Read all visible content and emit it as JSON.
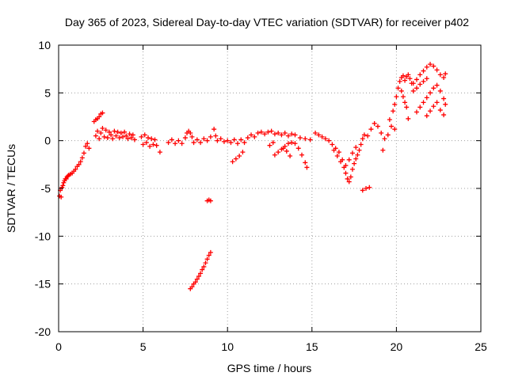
{
  "chart_data": {
    "type": "scatter",
    "title": "Day 365 of 2023, Sidereal Day-to-day VTEC variation (SDTVAR) for receiver p402",
    "xlabel": "GPS time / hours",
    "ylabel": "SDTVAR / TECUs",
    "xlim": [
      0,
      25
    ],
    "ylim": [
      -20,
      10
    ],
    "xticks": [
      "0",
      "5",
      "10",
      "15",
      "20",
      "25"
    ],
    "yticks": [
      "10",
      "5",
      "0",
      "-5",
      "-10",
      "-15",
      "-20"
    ],
    "xtick_values": [
      0,
      5,
      10,
      15,
      20,
      25
    ],
    "ytick_values": [
      10,
      5,
      0,
      -5,
      -10,
      -15,
      -20
    ],
    "grid": true,
    "marker": "+",
    "series_color": "#ff0000",
    "series": [
      {
        "name": "SDTVAR",
        "points": [
          [
            0.05,
            -5.8
          ],
          [
            0.1,
            -5.2
          ],
          [
            0.15,
            -5.9
          ],
          [
            0.2,
            -4.9
          ],
          [
            0.25,
            -4.7
          ],
          [
            0.3,
            -4.4
          ],
          [
            0.35,
            -4.2
          ],
          [
            0.4,
            -4.0
          ],
          [
            0.45,
            -4.0
          ],
          [
            0.5,
            -3.8
          ],
          [
            0.55,
            -3.7
          ],
          [
            0.6,
            -3.6
          ],
          [
            0.7,
            -3.5
          ],
          [
            0.8,
            -3.4
          ],
          [
            0.9,
            -3.2
          ],
          [
            1.0,
            -3.0
          ],
          [
            1.1,
            -2.7
          ],
          [
            1.2,
            -2.5
          ],
          [
            1.3,
            -2.2
          ],
          [
            1.4,
            -1.8
          ],
          [
            1.5,
            -1.3
          ],
          [
            1.6,
            -0.6
          ],
          [
            1.7,
            -0.3
          ],
          [
            1.8,
            -0.8
          ],
          [
            2.1,
            2.0
          ],
          [
            2.2,
            2.2
          ],
          [
            2.3,
            2.3
          ],
          [
            2.4,
            2.5
          ],
          [
            2.5,
            2.8
          ],
          [
            2.6,
            2.9
          ],
          [
            2.2,
            0.5
          ],
          [
            2.3,
            1.0
          ],
          [
            2.4,
            0.2
          ],
          [
            2.5,
            0.8
          ],
          [
            2.6,
            1.3
          ],
          [
            2.7,
            0.4
          ],
          [
            2.8,
            1.1
          ],
          [
            2.9,
            0.3
          ],
          [
            3.0,
            0.9
          ],
          [
            3.1,
            0.6
          ],
          [
            3.2,
            0.2
          ],
          [
            3.3,
            1.0
          ],
          [
            3.4,
            0.5
          ],
          [
            3.5,
            0.9
          ],
          [
            3.6,
            0.3
          ],
          [
            3.7,
            0.8
          ],
          [
            3.8,
            0.4
          ],
          [
            3.9,
            0.9
          ],
          [
            4.0,
            0.5
          ],
          [
            4.1,
            0.2
          ],
          [
            4.2,
            0.7
          ],
          [
            4.3,
            0.3
          ],
          [
            4.4,
            0.6
          ],
          [
            4.5,
            0.1
          ],
          [
            4.9,
            0.4
          ],
          [
            5.0,
            -0.4
          ],
          [
            5.1,
            0.6
          ],
          [
            5.2,
            -0.2
          ],
          [
            5.3,
            0.3
          ],
          [
            5.4,
            -0.6
          ],
          [
            5.5,
            0.2
          ],
          [
            5.6,
            -0.4
          ],
          [
            5.7,
            0.1
          ],
          [
            5.8,
            -0.5
          ],
          [
            6.0,
            -1.2
          ],
          [
            6.5,
            -0.2
          ],
          [
            6.7,
            0.1
          ],
          [
            6.9,
            -0.3
          ],
          [
            7.1,
            0.0
          ],
          [
            7.3,
            -0.3
          ],
          [
            7.5,
            0.3
          ],
          [
            7.6,
            0.8
          ],
          [
            7.7,
            1.0
          ],
          [
            7.8,
            0.8
          ],
          [
            7.9,
            0.4
          ],
          [
            8.0,
            -0.2
          ],
          [
            8.2,
            0.1
          ],
          [
            8.4,
            -0.2
          ],
          [
            8.6,
            0.2
          ],
          [
            8.8,
            0.0
          ],
          [
            9.0,
            0.4
          ],
          [
            9.2,
            1.2
          ],
          [
            9.3,
            0.5
          ],
          [
            9.4,
            0.0
          ],
          [
            9.6,
            0.2
          ],
          [
            9.8,
            -0.1
          ],
          [
            10.0,
            0.0
          ],
          [
            10.2,
            -0.2
          ],
          [
            10.4,
            0.1
          ],
          [
            10.6,
            -0.3
          ],
          [
            10.8,
            0.1
          ],
          [
            11.0,
            -0.2
          ],
          [
            10.3,
            -2.2
          ],
          [
            10.5,
            -1.9
          ],
          [
            10.7,
            -1.6
          ],
          [
            10.9,
            -1.2
          ],
          [
            11.2,
            0.3
          ],
          [
            11.4,
            0.6
          ],
          [
            11.6,
            0.4
          ],
          [
            11.8,
            0.8
          ],
          [
            12.0,
            0.9
          ],
          [
            12.2,
            0.7
          ],
          [
            12.4,
            0.9
          ],
          [
            12.6,
            1.0
          ],
          [
            12.8,
            0.7
          ],
          [
            13.0,
            0.8
          ],
          [
            13.2,
            0.6
          ],
          [
            13.4,
            0.8
          ],
          [
            13.6,
            0.5
          ],
          [
            13.8,
            0.7
          ],
          [
            14.0,
            0.6
          ],
          [
            14.3,
            0.3
          ],
          [
            14.6,
            0.2
          ],
          [
            14.9,
            0.1
          ],
          [
            12.8,
            -1.5
          ],
          [
            13.0,
            -1.2
          ],
          [
            13.2,
            -0.9
          ],
          [
            13.4,
            -0.6
          ],
          [
            13.6,
            -0.3
          ],
          [
            13.8,
            -0.2
          ],
          [
            14.0,
            -0.3
          ],
          [
            14.2,
            -0.8
          ],
          [
            14.4,
            -1.5
          ],
          [
            14.6,
            -2.3
          ],
          [
            14.7,
            -2.8
          ],
          [
            12.5,
            -0.5
          ],
          [
            12.7,
            -0.2
          ],
          [
            13.3,
            -0.8
          ],
          [
            13.5,
            -1.1
          ],
          [
            13.7,
            -1.6
          ],
          [
            15.2,
            0.8
          ],
          [
            15.4,
            0.6
          ],
          [
            15.6,
            0.4
          ],
          [
            15.8,
            0.2
          ],
          [
            16.0,
            0.0
          ],
          [
            16.2,
            -0.4
          ],
          [
            16.4,
            -0.8
          ],
          [
            16.3,
            -1.0
          ],
          [
            16.5,
            -1.6
          ],
          [
            16.7,
            -2.2
          ],
          [
            16.9,
            -2.8
          ],
          [
            17.0,
            -3.4
          ],
          [
            17.1,
            -4.0
          ],
          [
            17.2,
            -4.3
          ],
          [
            17.3,
            -3.8
          ],
          [
            17.4,
            -3.0
          ],
          [
            17.5,
            -2.4
          ],
          [
            17.6,
            -1.9
          ],
          [
            17.7,
            -1.5
          ],
          [
            17.8,
            -1.0
          ],
          [
            17.9,
            -0.4
          ],
          [
            18.0,
            0.2
          ],
          [
            18.1,
            0.6
          ],
          [
            16.6,
            -1.2
          ],
          [
            16.8,
            -2.0
          ],
          [
            17.0,
            -2.6
          ],
          [
            17.2,
            -2.0
          ],
          [
            17.4,
            -1.3
          ],
          [
            17.6,
            -0.7
          ],
          [
            18.0,
            -5.2
          ],
          [
            18.2,
            -5.0
          ],
          [
            18.4,
            -4.9
          ],
          [
            18.3,
            0.5
          ],
          [
            18.5,
            1.2
          ],
          [
            18.7,
            1.8
          ],
          [
            18.9,
            1.5
          ],
          [
            19.1,
            0.8
          ],
          [
            19.3,
            0.2
          ],
          [
            19.5,
            0.6
          ],
          [
            19.7,
            1.5
          ],
          [
            19.9,
            1.2
          ],
          [
            19.2,
            -1.0
          ],
          [
            19.6,
            2.2
          ],
          [
            19.8,
            3.1
          ],
          [
            19.9,
            3.8
          ],
          [
            20.0,
            4.6
          ],
          [
            20.1,
            5.5
          ],
          [
            20.2,
            6.2
          ],
          [
            20.3,
            6.6
          ],
          [
            20.4,
            6.8
          ],
          [
            20.5,
            6.3
          ],
          [
            20.6,
            6.7
          ],
          [
            20.7,
            6.9
          ],
          [
            20.8,
            6.5
          ],
          [
            20.9,
            6.0
          ],
          [
            20.3,
            5.2
          ],
          [
            20.4,
            4.6
          ],
          [
            20.5,
            4.0
          ],
          [
            20.6,
            3.5
          ],
          [
            20.7,
            2.3
          ],
          [
            21.0,
            6.0
          ],
          [
            21.2,
            6.4
          ],
          [
            21.4,
            6.9
          ],
          [
            21.6,
            7.3
          ],
          [
            21.8,
            7.7
          ],
          [
            22.0,
            8.0
          ],
          [
            22.2,
            7.8
          ],
          [
            22.4,
            7.4
          ],
          [
            22.6,
            6.9
          ],
          [
            22.8,
            6.6
          ],
          [
            22.9,
            7.0
          ],
          [
            21.0,
            5.2
          ],
          [
            21.2,
            5.5
          ],
          [
            21.4,
            5.9
          ],
          [
            21.6,
            6.2
          ],
          [
            21.8,
            6.5
          ],
          [
            21.2,
            3.0
          ],
          [
            21.4,
            3.5
          ],
          [
            21.6,
            4.0
          ],
          [
            21.8,
            4.5
          ],
          [
            22.0,
            5.0
          ],
          [
            22.2,
            5.5
          ],
          [
            22.4,
            5.8
          ],
          [
            22.6,
            5.2
          ],
          [
            22.8,
            4.4
          ],
          [
            22.9,
            3.8
          ],
          [
            21.8,
            2.6
          ],
          [
            22.0,
            3.1
          ],
          [
            22.2,
            3.6
          ],
          [
            22.4,
            4.0
          ],
          [
            22.6,
            3.2
          ],
          [
            22.8,
            2.7
          ],
          [
            8.8,
            -6.3
          ],
          [
            8.9,
            -6.2
          ],
          [
            9.0,
            -6.3
          ],
          [
            7.8,
            -15.5
          ],
          [
            7.9,
            -15.3
          ],
          [
            8.0,
            -15.0
          ],
          [
            8.1,
            -14.8
          ],
          [
            8.2,
            -14.5
          ],
          [
            8.3,
            -14.2
          ],
          [
            8.4,
            -13.9
          ],
          [
            8.5,
            -13.5
          ],
          [
            8.6,
            -13.2
          ],
          [
            8.7,
            -12.8
          ],
          [
            8.8,
            -12.4
          ],
          [
            8.9,
            -12.0
          ],
          [
            9.0,
            -11.7
          ]
        ]
      }
    ]
  }
}
